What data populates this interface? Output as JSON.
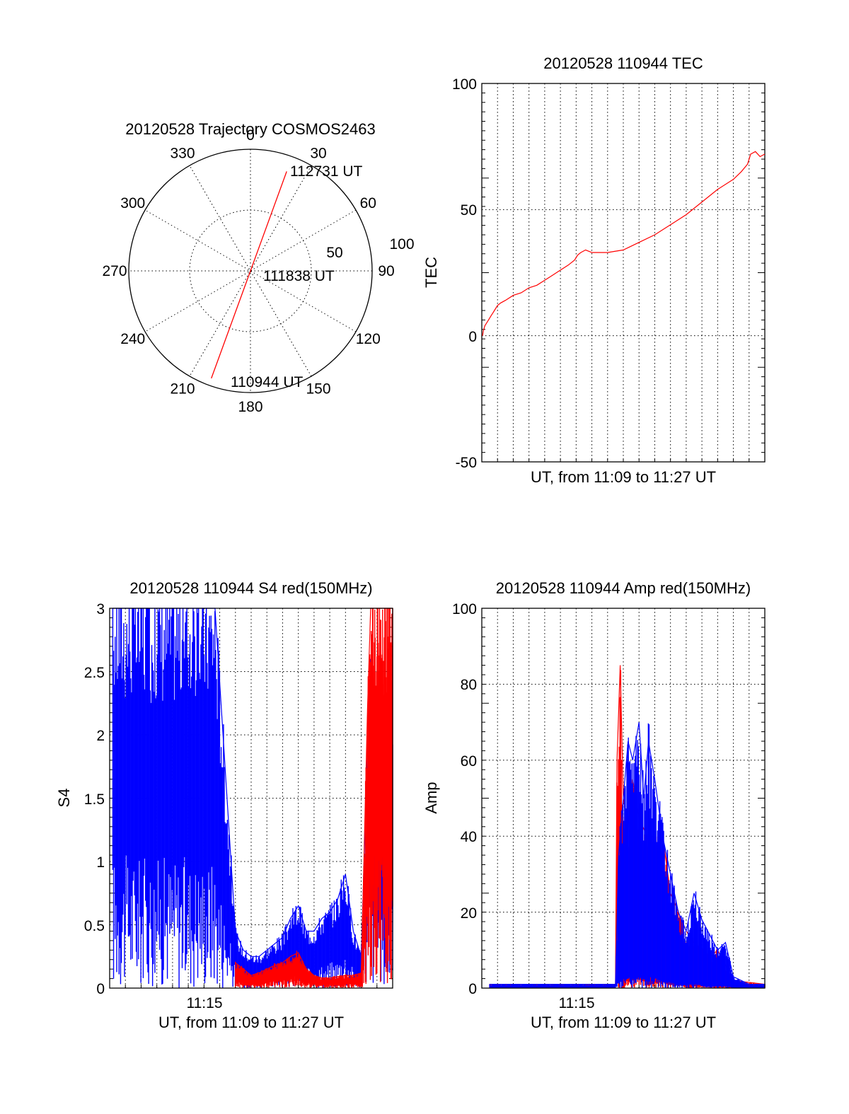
{
  "figure": {
    "background": "#ffffff",
    "colors": {
      "red": "#ff0000",
      "blue": "#0000ff"
    }
  },
  "chart_data": [
    {
      "id": "polar",
      "type": "polar-line",
      "title": "20120528 Trajectory COSMOS2463",
      "azimuth_labels": [
        "0",
        "30",
        "60",
        "90",
        "120",
        "150",
        "180",
        "210",
        "240",
        "270",
        "300",
        "330"
      ],
      "radial_labels": [
        "50",
        "100"
      ],
      "radial_range": [
        0,
        100
      ],
      "grid": true,
      "track": {
        "color": "#ff0000",
        "points": [
          {
            "az": 200,
            "r": 94
          },
          {
            "az": 180,
            "r": 0
          },
          {
            "az": 20,
            "r": 87
          }
        ]
      },
      "annotations": [
        {
          "text": "112731 UT",
          "az": 20,
          "r": 87
        },
        {
          "text": "111838 UT",
          "az": 0,
          "r": 0
        },
        {
          "text": "110944 UT",
          "az": 200,
          "r": 94
        }
      ]
    },
    {
      "id": "tec",
      "type": "line",
      "title": "20120528 110944 TEC",
      "xlabel": "UT, from 11:09 to 11:27 UT",
      "ylabel": "TEC",
      "yticks": [
        "100",
        "50",
        "0",
        "-50"
      ],
      "ylim": [
        -50,
        100
      ],
      "grid": true,
      "series": [
        {
          "color": "#ff0000",
          "x": [
            0.05,
            0.1,
            0.2,
            0.3,
            0.4,
            0.5,
            0.6,
            0.7,
            0.8,
            0.9,
            1.0,
            1.2,
            1.5,
            2.0,
            2.5,
            3.0,
            3.5,
            4.0,
            4.5,
            5.0,
            5.5,
            5.9,
            6.1,
            6.3,
            6.6,
            7.0,
            7.5,
            8.0,
            9.0,
            10.0,
            11.0,
            12.0,
            13.0,
            14.0,
            15.0,
            16.0,
            16.5,
            16.9,
            17.1,
            17.4,
            17.7,
            18.0
          ],
          "y": [
            0,
            2,
            4,
            5,
            6,
            7,
            8,
            9,
            10,
            11,
            12,
            13,
            14,
            16,
            17,
            19,
            20,
            22,
            24,
            26,
            28,
            30,
            32,
            33,
            34,
            33,
            33,
            33,
            34,
            37,
            40,
            44,
            48,
            53,
            58,
            62,
            65,
            68,
            72,
            73,
            71,
            72
          ]
        }
      ]
    },
    {
      "id": "s4",
      "type": "line",
      "title": "20120528 110944 S4 red(150MHz)",
      "xlabel": "UT, from 11:09 to 11:27 UT",
      "ylabel": "S4",
      "xticks": [
        "11:15"
      ],
      "yticks": [
        "3",
        "2.5",
        "2",
        "1.5",
        "1",
        "0.5",
        "0"
      ],
      "ylim": [
        0,
        3
      ],
      "grid": true,
      "series": [
        {
          "color": "#0000ff",
          "x": [
            0.2,
            1.0,
            2.0,
            3.0,
            4.0,
            5.0,
            6.0,
            6.7,
            8.0,
            8.5,
            9.0,
            9.5,
            10.0,
            10.5,
            11.0,
            11.5,
            12.0,
            12.5,
            13.0,
            13.5,
            14.0,
            14.5,
            15.0,
            15.5,
            16.0,
            16.4,
            16.6,
            17.0,
            17.5,
            18.0
          ],
          "y": [
            3,
            3,
            3,
            3,
            3,
            3,
            3,
            3,
            0.45,
            0.3,
            0.25,
            0.25,
            0.3,
            0.35,
            0.4,
            0.55,
            0.65,
            0.45,
            0.45,
            0.55,
            0.6,
            0.7,
            0.9,
            0.45,
            0.25,
            1.9,
            2.6,
            2.2,
            2.0,
            1.8
          ]
        },
        {
          "color": "#ff0000",
          "x": [
            8.0,
            8.5,
            9.0,
            9.5,
            10.0,
            10.5,
            11.0,
            11.5,
            12.0,
            12.5,
            13.0,
            13.5,
            14.0,
            14.5,
            15.0,
            15.5,
            16.0,
            16.4,
            16.6,
            17.0,
            17.5,
            18.0
          ],
          "y": [
            0.2,
            0.15,
            0.1,
            0.12,
            0.15,
            0.18,
            0.2,
            0.25,
            0.28,
            0.15,
            0.1,
            0.08,
            0.08,
            0.09,
            0.1,
            0.1,
            0.12,
            2.2,
            3.0,
            3.0,
            3.0,
            3.0
          ]
        }
      ]
    },
    {
      "id": "amp",
      "type": "line",
      "title": "20120528 110944 Amp red(150MHz)",
      "xlabel": "UT, from 11:09 to 11:27 UT",
      "ylabel": "Amp",
      "xticks": [
        "11:15"
      ],
      "yticks": [
        "100",
        "80",
        "60",
        "40",
        "20",
        "0"
      ],
      "ylim": [
        0,
        100
      ],
      "grid": true,
      "series": [
        {
          "color": "#ff0000",
          "x": [
            0.5,
            3.0,
            5.0,
            8.5,
            8.6,
            8.8,
            9.0,
            9.3,
            9.6,
            10.0,
            10.5,
            11.0,
            11.5,
            12.0,
            12.5,
            13.0,
            13.5,
            14.0,
            14.5,
            15.0,
            15.5,
            16.0,
            18.0
          ],
          "y": [
            1,
            1,
            1,
            1,
            60,
            85,
            50,
            42,
            55,
            45,
            40,
            35,
            40,
            25,
            20,
            15,
            12,
            10,
            8,
            10,
            6,
            2,
            1
          ]
        },
        {
          "color": "#0000ff",
          "x": [
            0.5,
            2.0,
            4.0,
            6.0,
            8.5,
            8.7,
            9.0,
            9.3,
            9.6,
            10.0,
            10.3,
            10.6,
            11.0,
            11.5,
            12.0,
            12.5,
            13.0,
            13.5,
            14.0,
            14.5,
            15.0,
            15.5,
            16.0,
            17.0,
            18.0
          ],
          "y": [
            1,
            1,
            1,
            1,
            1,
            35,
            50,
            65,
            60,
            70,
            50,
            65,
            55,
            40,
            30,
            20,
            15,
            25,
            18,
            14,
            10,
            12,
            3,
            1,
            1
          ]
        }
      ]
    }
  ]
}
